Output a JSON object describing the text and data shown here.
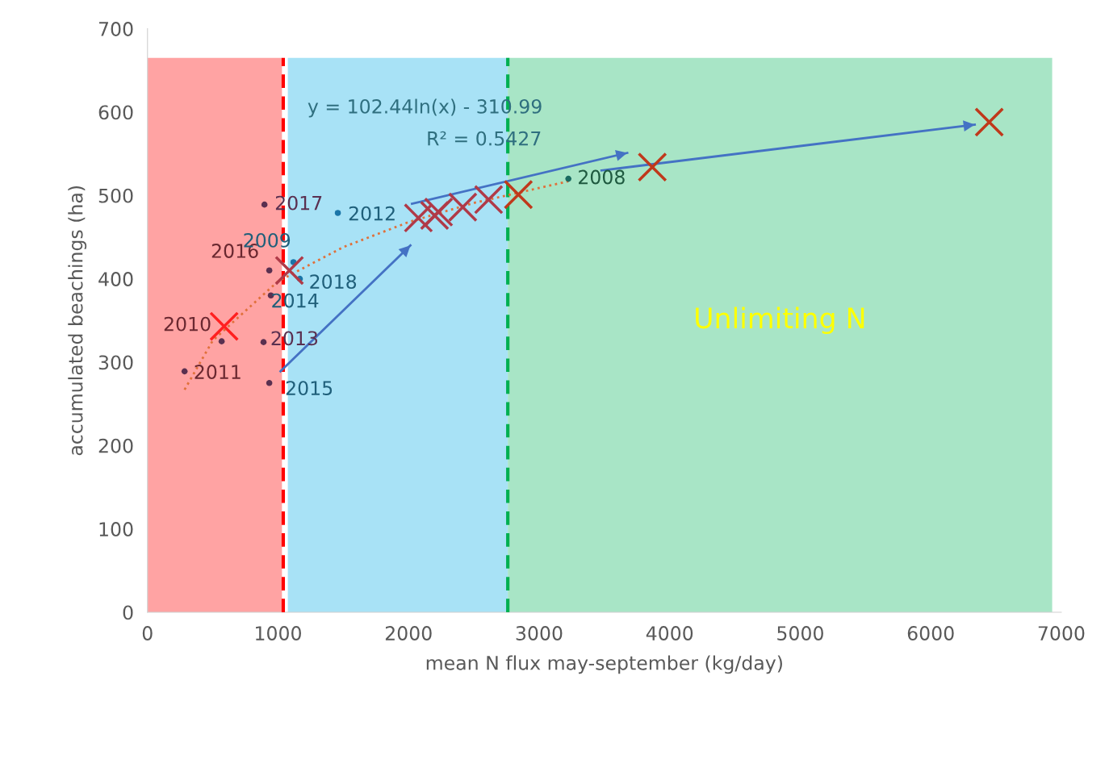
{
  "chart_data": {
    "type": "scatter",
    "xlabel": "mean N flux may-september (kg/day)",
    "ylabel": "accumulated beachings (ha)",
    "xlim": [
      0,
      7000
    ],
    "xticks": [
      0,
      1000,
      2000,
      3000,
      4000,
      5000,
      6000,
      7000
    ],
    "ylim": [
      0,
      700
    ],
    "yticks": [
      0,
      100,
      200,
      300,
      400,
      500,
      600,
      700
    ],
    "grid": false,
    "legend": false,
    "bands": [
      {
        "axis": "x",
        "from": 0,
        "to": 1030,
        "color": "#ffa3a3"
      },
      {
        "axis": "x",
        "from": 1075,
        "to": 2760,
        "color": "#a8e2f6"
      },
      {
        "axis": "x",
        "from": 2760,
        "to": 6930,
        "color": "#a8e5c6",
        "label": "Unlimiting N"
      }
    ],
    "ref_lines": [
      {
        "axis": "x",
        "value": 1040,
        "color": "#ff0000",
        "line_style": "dashed"
      },
      {
        "axis": "x",
        "value": 2760,
        "color": "#00b050",
        "line_style": "dashed"
      }
    ],
    "annotations": [
      "y = 102.44ln(x) - 310.99",
      "R² = 0.5427",
      {
        "text": "2017",
        "x": 896,
        "y": 489
      },
      {
        "text": "2012",
        "x": 1458,
        "y": 479
      },
      {
        "text": "2016",
        "x": 933,
        "y": 410
      },
      {
        "text": "2009",
        "x": 1118,
        "y": 420
      },
      {
        "text": "2018",
        "x": 1167,
        "y": 400
      },
      {
        "text": "2014",
        "x": 945,
        "y": 380
      },
      {
        "text": "2010",
        "x": 568,
        "y": 325
      },
      {
        "text": "2013",
        "x": 889,
        "y": 324
      },
      {
        "text": "2011",
        "x": 284,
        "y": 289
      },
      {
        "text": "2015",
        "x": 933,
        "y": 275
      },
      {
        "text": "2008",
        "x": 3224,
        "y": 520
      }
    ],
    "series": [
      {
        "type": "line",
        "color": "#e0703a",
        "line_style": "dotted",
        "marker": "none",
        "x": [
          284,
          500,
          1000,
          1500,
          2000,
          2500,
          3224
        ],
        "values": [
          267,
          326,
          397,
          438,
          468,
          491,
          517
        ]
      },
      {
        "marker": "circle",
        "x": [
          896,
          1458,
          933,
          1118,
          1167,
          945,
          568,
          889,
          284,
          933,
          3224
        ],
        "values": [
          489,
          479,
          410,
          420,
          400,
          380,
          325,
          324,
          289,
          275,
          520
        ],
        "colors": [
          "#5a3050",
          "#1a75a8",
          "#5a3050",
          "#1a75a8",
          "#1a75a8",
          "#5a3050",
          "#5a3050",
          "#5a3050",
          "#5a3050",
          "#5a3050",
          "#1a6b60"
        ]
      },
      {
        "marker": "cross",
        "x": [
          587,
          1087,
          2075,
          2199,
          2230,
          2415,
          2613,
          2841,
          3867,
          6448
        ],
        "values": [
          343,
          410,
          473,
          476,
          480,
          486,
          495,
          501,
          534,
          588
        ],
        "colors": [
          "#ff2020",
          "#b03a48",
          "#b03a48",
          "#b03a48",
          "#b03a48",
          "#b03a48",
          "#b03a48",
          "#c0391b",
          "#c0391b",
          "#c0391b"
        ]
      },
      {
        "type": "line",
        "line_style": "solid",
        "color": "#4472c4",
        "x": [
          1019,
          2014
        ],
        "values": [
          289,
          440
        ]
      },
      {
        "type": "line",
        "line_style": "solid",
        "color": "#4472c4",
        "x": [
          2026,
          3675
        ],
        "values": [
          490,
          551
        ]
      },
      {
        "type": "line",
        "line_style": "solid",
        "color": "#4472c4",
        "x": [
          3478,
          6337
        ],
        "values": [
          530,
          585
        ]
      }
    ]
  }
}
